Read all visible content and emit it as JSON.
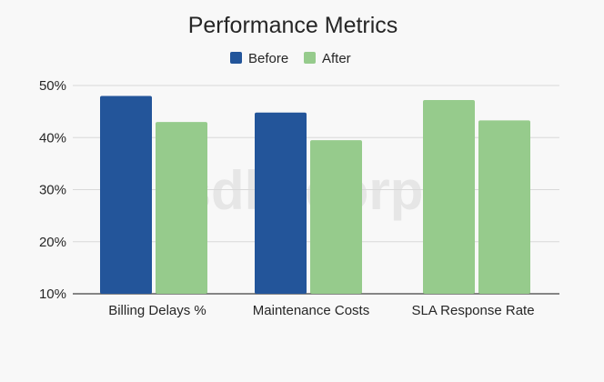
{
  "watermark": "sdlc corp",
  "chart_data": {
    "type": "bar",
    "title": "Performance Metrics",
    "xlabel": "",
    "ylabel": "",
    "categories": [
      "Billing Delays %",
      "Maintenance Costs",
      "SLA Response Rate"
    ],
    "series": [
      {
        "name": "Before",
        "color": "#23559a",
        "values": [
          48,
          44.8,
          null
        ]
      },
      {
        "name": "After",
        "color": "#96cb8c",
        "values": [
          43,
          39.5,
          47.2
        ]
      },
      {
        "name": "",
        "color": "#96cb8c",
        "values": [
          null,
          null,
          43.3
        ]
      }
    ],
    "yticks": [
      "10%",
      "20%",
      "30%",
      "40%",
      "50%"
    ],
    "ytick_values": [
      10,
      20,
      30,
      40,
      50
    ],
    "ylim": [
      10,
      52
    ],
    "grid": true,
    "legend": "top-center"
  }
}
